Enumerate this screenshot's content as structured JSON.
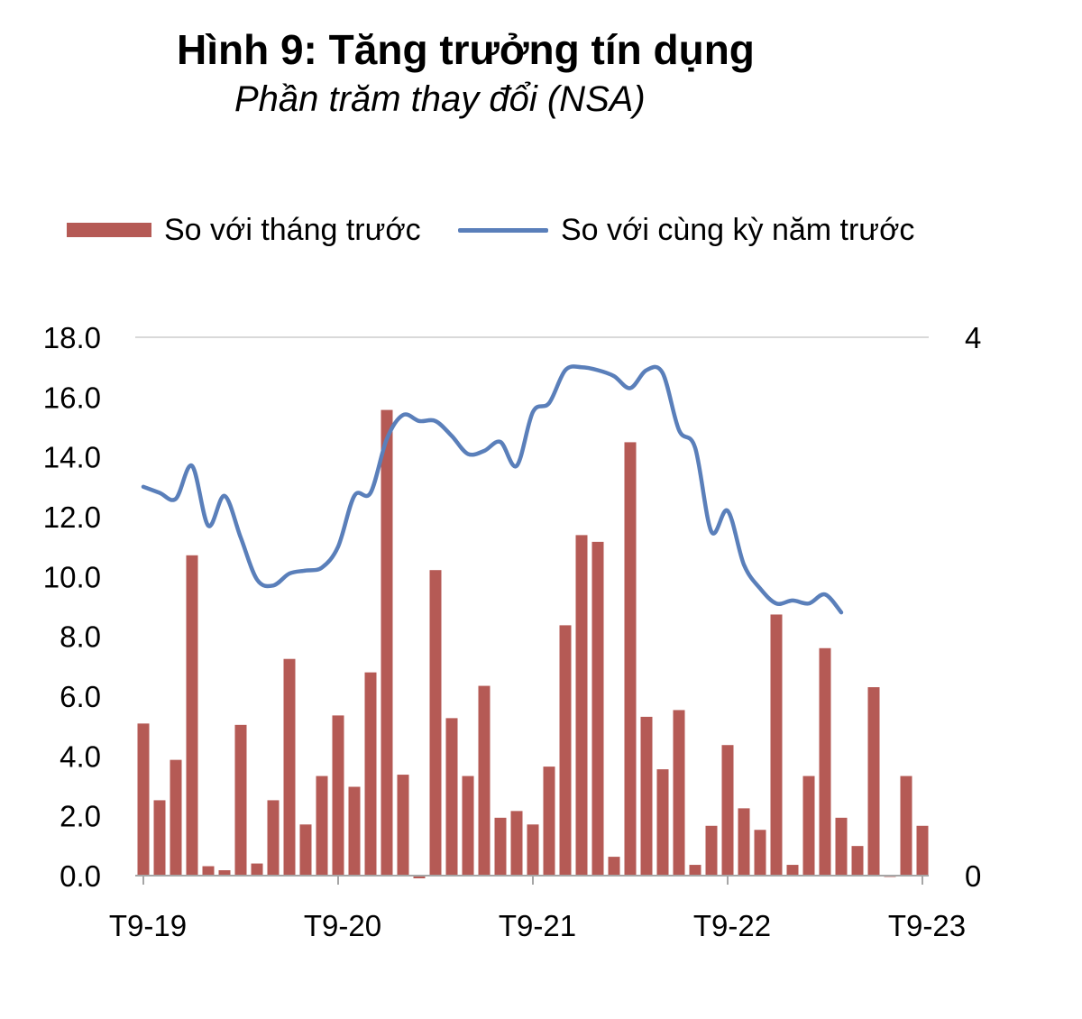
{
  "title": "Hình 9: Tăng trưởng tín dụng",
  "subtitle": "Phần trăm thay đổi (NSA)",
  "colors": {
    "bar": "#b55a55",
    "line": "#5a7fba",
    "grid": "#d9d9d9",
    "axis": "#a6a6a6"
  },
  "legend": {
    "bar_label": "So với tháng trước",
    "line_label": "So với cùng kỳ năm trước"
  },
  "chart_data": {
    "type": "bar+line",
    "title": "Hình 9: Tăng trưởng tín dụng",
    "subtitle": "Phần trăm thay đổi (NSA)",
    "grid": true,
    "legend_position": "top",
    "x_tick_labels": [
      "T9-19",
      "T9-20",
      "T9-21",
      "T9-22",
      "T9-23"
    ],
    "x_tick_indices": [
      0,
      12,
      24,
      36,
      48
    ],
    "y_left": {
      "range": [
        0,
        18
      ],
      "ticks": [
        "0.0",
        "2.0",
        "4.0",
        "6.0",
        "8.0",
        "10.0",
        "12.0",
        "14.0",
        "16.0",
        "18.0"
      ]
    },
    "y_right": {
      "range": [
        0,
        4
      ],
      "ticks": [
        "0",
        "4"
      ]
    },
    "series": [
      {
        "name": "So với tháng trước",
        "type": "bar",
        "axis": "right",
        "values": [
          1.13,
          0.56,
          0.86,
          2.38,
          0.07,
          0.04,
          1.12,
          0.09,
          0.56,
          1.61,
          0.38,
          0.74,
          1.19,
          0.66,
          1.51,
          3.46,
          0.75,
          -0.02,
          2.27,
          1.17,
          0.74,
          1.41,
          0.43,
          0.48,
          0.38,
          0.81,
          1.86,
          2.53,
          2.48,
          0.14,
          3.22,
          1.18,
          0.79,
          1.23,
          0.08,
          0.37,
          0.97,
          0.5,
          0.34,
          1.94,
          0.08,
          0.74,
          1.69,
          0.43,
          0.22,
          1.4,
          -0.01,
          0.74,
          0.37
        ]
      },
      {
        "name": "So với cùng kỳ năm trước",
        "type": "line",
        "axis": "left",
        "values": [
          13.0,
          12.8,
          12.6,
          13.7,
          11.7,
          12.7,
          11.3,
          9.9,
          9.7,
          10.1,
          10.2,
          10.3,
          11.0,
          12.7,
          12.8,
          14.6,
          15.4,
          15.2,
          15.2,
          14.7,
          14.1,
          14.2,
          14.5,
          13.7,
          15.5,
          15.8,
          16.9,
          17.0,
          16.9,
          16.7,
          16.3,
          16.9,
          16.8,
          14.9,
          14.3,
          11.5,
          12.2,
          10.4,
          9.6,
          9.1,
          9.2,
          9.1,
          9.4,
          8.8
        ]
      }
    ]
  }
}
